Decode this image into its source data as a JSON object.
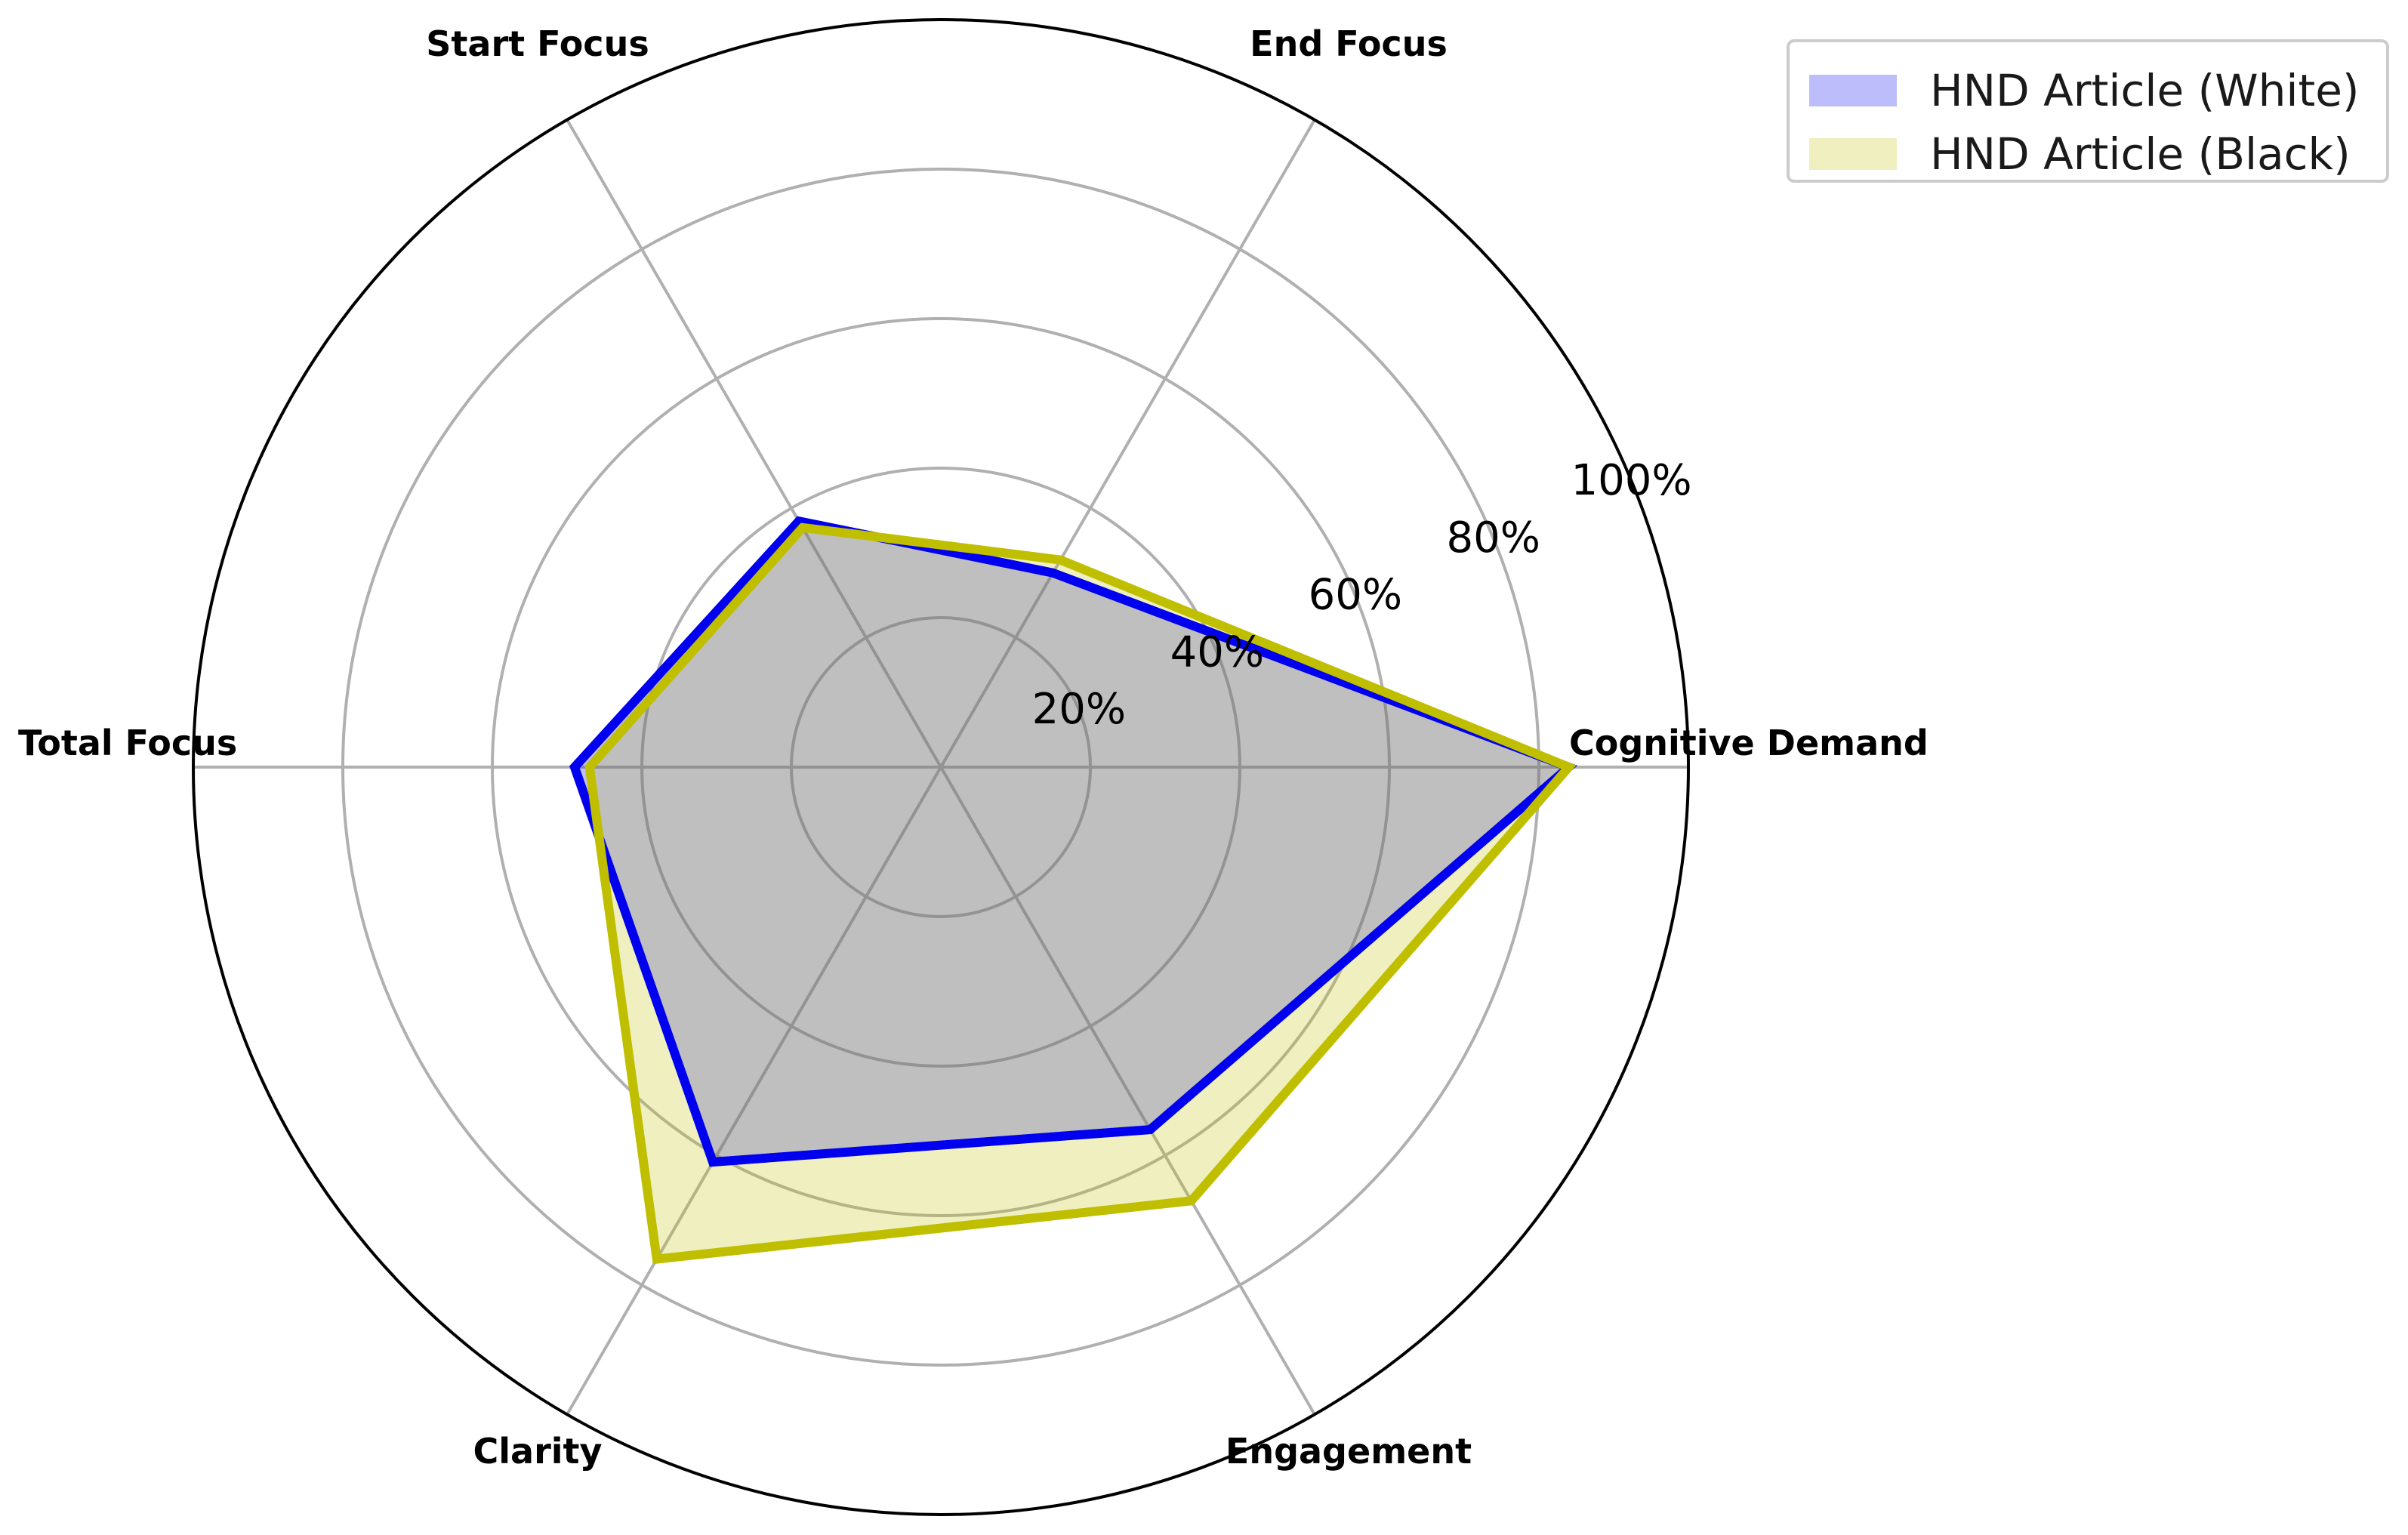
{
  "chart_data": {
    "type": "radar",
    "axes": [
      "Cognitive Demand",
      "End Focus",
      "Start Focus",
      "Total Focus",
      "Clarity",
      "Engagement"
    ],
    "radial_ticks": [
      "20%",
      "40%",
      "60%",
      "80%",
      "100%"
    ],
    "radial_range": [
      0,
      100
    ],
    "grid": true,
    "legend_position": "top-right",
    "series": [
      {
        "name": "HND Article (White)",
        "values": [
          84,
          30,
          38,
          49,
          61,
          56
        ],
        "line_color": "#0000ee",
        "fill_color": "#0000ff",
        "fill_opacity": 0.25
      },
      {
        "name": "HND Article (Black)",
        "values": [
          84,
          32,
          37,
          47,
          76,
          67
        ],
        "line_color": "#bfbf00",
        "fill_color": "#bfbf00",
        "fill_opacity": 0.25
      }
    ]
  }
}
